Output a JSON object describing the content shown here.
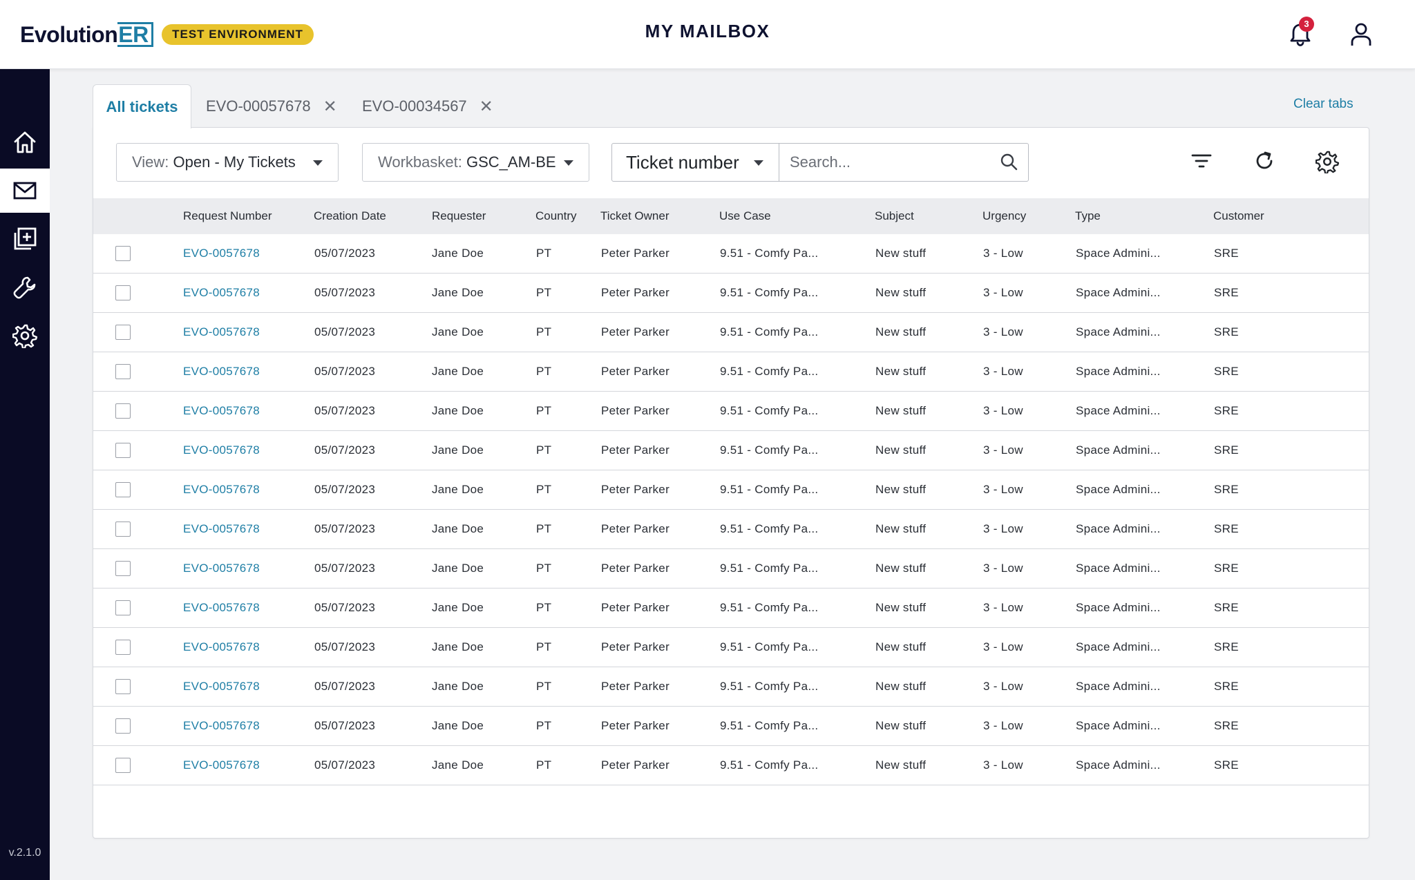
{
  "header": {
    "logo_text": "Evolution",
    "logo_accent": "ER",
    "env_badge": "TEST ENVIRONMENT",
    "title": "MY MAILBOX",
    "notification_count": "3"
  },
  "sidebar": {
    "items": [
      {
        "name": "home",
        "icon": "home-icon",
        "active": false
      },
      {
        "name": "mailbox",
        "icon": "mail-icon",
        "active": true
      },
      {
        "name": "new-ticket",
        "icon": "add-document-icon",
        "active": false
      },
      {
        "name": "tools",
        "icon": "wrench-icon",
        "active": false
      },
      {
        "name": "settings",
        "icon": "gear-icon",
        "active": false
      }
    ],
    "version": "v.2.1.0"
  },
  "tabs": {
    "all_label": "All tickets",
    "open": [
      {
        "label": "EVO-00057678"
      },
      {
        "label": "EVO-00034567"
      }
    ],
    "clear_label": "Clear tabs"
  },
  "toolbar": {
    "view_label": "View:",
    "view_value": "Open - My Tickets",
    "workbasket_label": "Workbasket:",
    "workbasket_value": "GSC_AM-BE",
    "search_type": "Ticket number",
    "search_placeholder": "Search..."
  },
  "table": {
    "columns": [
      "Request Number",
      "Creation Date",
      "Requester",
      "Country",
      "Ticket Owner",
      "Use Case",
      "Subject",
      "Urgency",
      "Type",
      "Customer"
    ],
    "rows": [
      [
        "EVO-0057678",
        "05/07/2023",
        "Jane Doe",
        "PT",
        "Peter Parker",
        "9.51 - Comfy Pa...",
        "New stuff",
        "3 - Low",
        "Space Admini...",
        "SRE"
      ],
      [
        "EVO-0057678",
        "05/07/2023",
        "Jane Doe",
        "PT",
        "Peter Parker",
        "9.51 - Comfy Pa...",
        "New stuff",
        "3 - Low",
        "Space Admini...",
        "SRE"
      ],
      [
        "EVO-0057678",
        "05/07/2023",
        "Jane Doe",
        "PT",
        "Peter Parker",
        "9.51 - Comfy Pa...",
        "New stuff",
        "3 - Low",
        "Space Admini...",
        "SRE"
      ],
      [
        "EVO-0057678",
        "05/07/2023",
        "Jane Doe",
        "PT",
        "Peter Parker",
        "9.51 - Comfy Pa...",
        "New stuff",
        "3 - Low",
        "Space Admini...",
        "SRE"
      ],
      [
        "EVO-0057678",
        "05/07/2023",
        "Jane Doe",
        "PT",
        "Peter Parker",
        "9.51 - Comfy Pa...",
        "New stuff",
        "3 - Low",
        "Space Admini...",
        "SRE"
      ],
      [
        "EVO-0057678",
        "05/07/2023",
        "Jane Doe",
        "PT",
        "Peter Parker",
        "9.51 - Comfy Pa...",
        "New stuff",
        "3 - Low",
        "Space Admini...",
        "SRE"
      ],
      [
        "EVO-0057678",
        "05/07/2023",
        "Jane Doe",
        "PT",
        "Peter Parker",
        "9.51 - Comfy Pa...",
        "New stuff",
        "3 - Low",
        "Space Admini...",
        "SRE"
      ],
      [
        "EVO-0057678",
        "05/07/2023",
        "Jane Doe",
        "PT",
        "Peter Parker",
        "9.51 - Comfy Pa...",
        "New stuff",
        "3 - Low",
        "Space Admini...",
        "SRE"
      ],
      [
        "EVO-0057678",
        "05/07/2023",
        "Jane Doe",
        "PT",
        "Peter Parker",
        "9.51 - Comfy Pa...",
        "New stuff",
        "3 - Low",
        "Space Admini...",
        "SRE"
      ],
      [
        "EVO-0057678",
        "05/07/2023",
        "Jane Doe",
        "PT",
        "Peter Parker",
        "9.51 - Comfy Pa...",
        "New stuff",
        "3 - Low",
        "Space Admini...",
        "SRE"
      ],
      [
        "EVO-0057678",
        "05/07/2023",
        "Jane Doe",
        "PT",
        "Peter Parker",
        "9.51 - Comfy Pa...",
        "New stuff",
        "3 - Low",
        "Space Admini...",
        "SRE"
      ],
      [
        "EVO-0057678",
        "05/07/2023",
        "Jane Doe",
        "PT",
        "Peter Parker",
        "9.51 - Comfy Pa...",
        "New stuff",
        "3 - Low",
        "Space Admini...",
        "SRE"
      ],
      [
        "EVO-0057678",
        "05/07/2023",
        "Jane Doe",
        "PT",
        "Peter Parker",
        "9.51 - Comfy Pa...",
        "New stuff",
        "3 - Low",
        "Space Admini...",
        "SRE"
      ],
      [
        "EVO-0057678",
        "05/07/2023",
        "Jane Doe",
        "PT",
        "Peter Parker",
        "9.51 - Comfy Pa...",
        "New stuff",
        "3 - Low",
        "Space Admini...",
        "SRE"
      ]
    ]
  },
  "colors": {
    "accent": "#1e7ea5",
    "sidebar_bg": "#0a0b25",
    "badge_yellow": "#e8c32c",
    "notification_red": "#d4213d"
  }
}
